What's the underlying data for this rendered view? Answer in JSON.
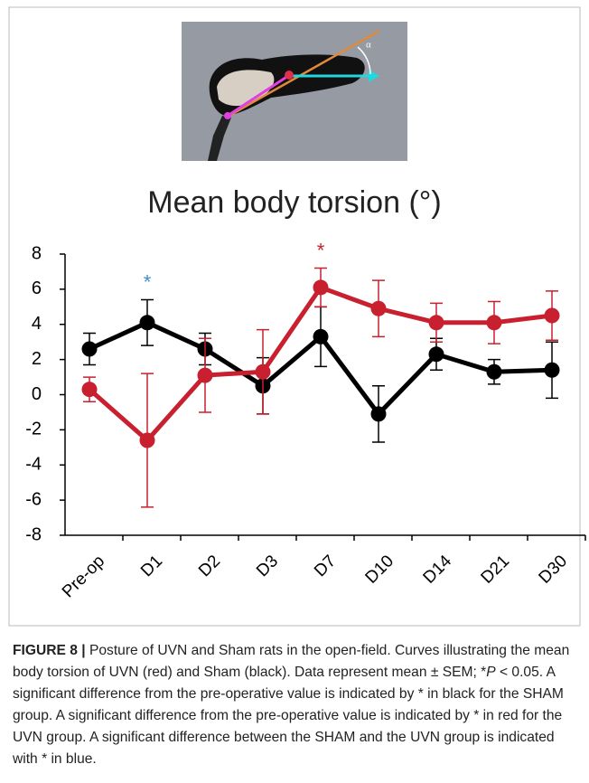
{
  "chart_data": {
    "type": "line",
    "title": "Mean body torsion (°)",
    "categories": [
      "Pre-op",
      "D1",
      "D2",
      "D3",
      "D7",
      "D10",
      "D14",
      "D21",
      "D30"
    ],
    "series": [
      {
        "color": "#000000",
        "values": [
          2.6,
          4.1,
          2.6,
          0.5,
          3.3,
          -1.1,
          2.3,
          1.3,
          1.4
        ],
        "errors": [
          0.9,
          1.3,
          0.9,
          1.6,
          1.7,
          1.6,
          0.9,
          0.7,
          1.6
        ]
      },
      {
        "color": "#c8202f",
        "values": [
          0.3,
          -2.6,
          1.1,
          1.3,
          6.1,
          4.9,
          4.1,
          4.1,
          4.5
        ],
        "errors": [
          0.7,
          3.8,
          2.1,
          2.4,
          1.1,
          1.6,
          1.1,
          1.2,
          1.4
        ]
      }
    ],
    "ylim": [
      -8,
      8
    ],
    "yticks": [
      -8,
      -6,
      -4,
      -2,
      0,
      2,
      4,
      6,
      8
    ],
    "annotations": [
      {
        "text": "*",
        "category": "D1",
        "color": "#3a8fd0"
      },
      {
        "text": "*",
        "category": "D7",
        "color": "#c8202f"
      }
    ]
  },
  "caption": {
    "label": "FIGURE 8 |",
    "text_before": " Posture of UVN and Sham rats in the open-field. Curves illustrating the mean body torsion of UVN (red) and Sham (black). Data represent mean ± SEM; *",
    "italic": "P",
    "text_after": " < 0.05. A significant difference from the pre-operative value is indicated by * in black for the SHAM group. A significant difference from the pre-operative value is indicated by * in red for the UVN group. A significant difference between the SHAM and the UVN group is indicated with * in blue."
  }
}
